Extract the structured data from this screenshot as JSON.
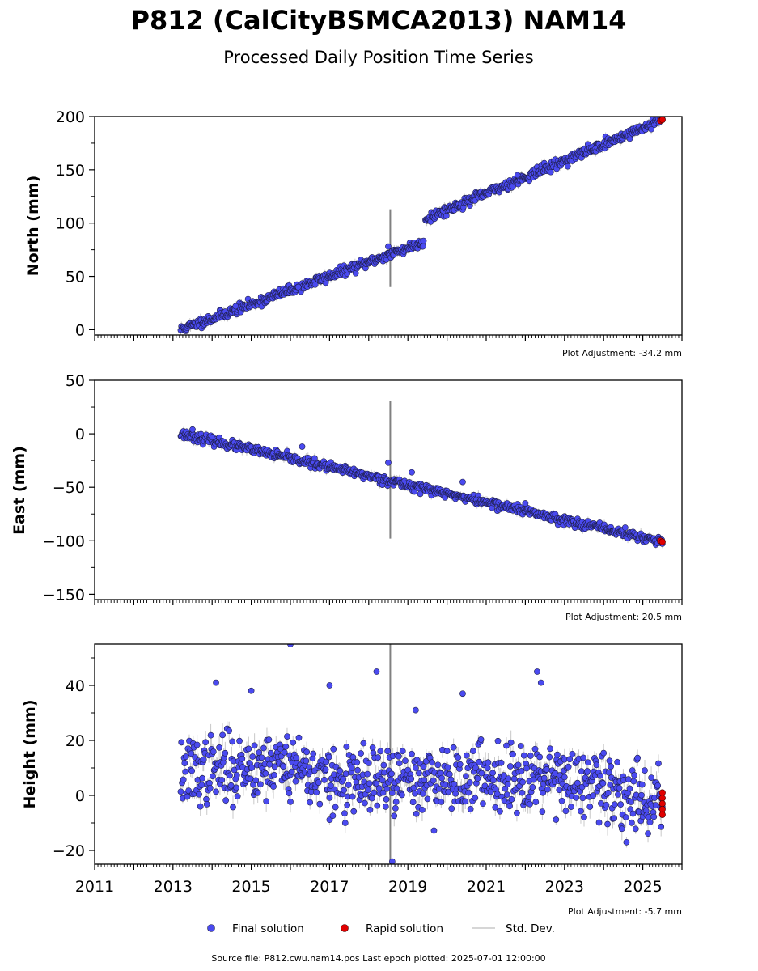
{
  "header": {
    "title": "P812 (CalCityBSMCA2013) NAM14",
    "subtitle": "Processed Daily Position Time Series"
  },
  "legend": {
    "final_label": "Final solution",
    "rapid_label": "Rapid solution",
    "std_label": "Std. Dev.",
    "final_color": "#4a4af0",
    "rapid_color": "#e00000",
    "std_color": "#c8c8c8"
  },
  "footer": {
    "source": "Source file: P812.cwu.nam14.pos  Last epoch plotted: 2025-07-01 12:00:00"
  },
  "chart_data": [
    {
      "type": "scatter",
      "ylabel": "North (mm)",
      "adjustment": "Plot Adjustment: -34.2 mm",
      "xlim": [
        2011,
        2026
      ],
      "ylim": [
        -5,
        200
      ],
      "yticks": [
        0,
        50,
        100,
        150,
        200
      ],
      "ytick_labels": [
        "0",
        "50",
        "100",
        "150",
        "200"
      ],
      "trend": [
        {
          "x": [
            2013.2,
            2019.4
          ],
          "y": [
            0,
            82
          ]
        },
        {
          "x": [
            2019.45,
            2025.5
          ],
          "y": [
            104,
            197
          ]
        }
      ],
      "outliers": [
        [
          2018.5,
          78
        ],
        [
          2016.2,
          40
        ],
        [
          2021.8,
          145
        ],
        [
          2014.6,
          22
        ]
      ],
      "spike": {
        "x": 2018.55,
        "y": [
          40,
          113
        ]
      },
      "rapid": [
        [
          2025.45,
          196
        ],
        [
          2025.5,
          197
        ]
      ]
    },
    {
      "type": "scatter",
      "ylabel": "East (mm)",
      "adjustment": "Plot Adjustment: 20.5 mm",
      "xlim": [
        2011,
        2026
      ],
      "ylim": [
        -155,
        50
      ],
      "yticks": [
        -150,
        -100,
        -50,
        0,
        50
      ],
      "ytick_labels": [
        "−150",
        "−100",
        "−50",
        "0",
        "50"
      ],
      "trend": [
        {
          "x": [
            2013.2,
            2025.5
          ],
          "y": [
            0,
            -101
          ]
        }
      ],
      "outliers": [
        [
          2013.5,
          4
        ],
        [
          2016.3,
          -12
        ],
        [
          2018.5,
          -27
        ],
        [
          2019.1,
          -36
        ],
        [
          2020.4,
          -45
        ],
        [
          2022.0,
          -65
        ]
      ],
      "spike": {
        "x": 2018.55,
        "y": [
          -98,
          31
        ]
      },
      "rapid": [
        [
          2025.45,
          -100
        ],
        [
          2025.5,
          -101
        ]
      ]
    },
    {
      "type": "scatter",
      "ylabel": "Height (mm)",
      "adjustment": "Plot Adjustment: -5.7 mm",
      "xlim": [
        2011,
        2026
      ],
      "ylim": [
        -25,
        55
      ],
      "yticks": [
        -20,
        0,
        20,
        40
      ],
      "ytick_labels": [
        "−20",
        "0",
        "20",
        "40"
      ],
      "xticks": [
        2011,
        2013,
        2015,
        2017,
        2019,
        2021,
        2023,
        2025
      ],
      "xtick_labels": [
        "2011",
        "2013",
        "2015",
        "2017",
        "2019",
        "2021",
        "2023",
        "2025"
      ],
      "trend": [
        {
          "x": [
            2013.2,
            2016.0
          ],
          "y": [
            8,
            12
          ]
        },
        {
          "x": [
            2016.0,
            2017.0
          ],
          "y": [
            12,
            5
          ]
        },
        {
          "x": [
            2017.0,
            2022.8
          ],
          "y": [
            4,
            8
          ]
        },
        {
          "x": [
            2022.8,
            2023.0
          ],
          "y": [
            8,
            10
          ]
        },
        {
          "x": [
            2023.0,
            2025.5
          ],
          "y": [
            5,
            -2
          ]
        }
      ],
      "outliers": [
        [
          2016.0,
          55
        ],
        [
          2018.2,
          45
        ],
        [
          2022.3,
          45
        ],
        [
          2014.1,
          41
        ],
        [
          2017.0,
          40
        ],
        [
          2020.4,
          37
        ],
        [
          2015.0,
          38
        ],
        [
          2022.4,
          41
        ],
        [
          2019.2,
          31
        ],
        [
          2018.6,
          -24
        ]
      ],
      "spike": {
        "x": 2018.55,
        "y": [
          -25,
          55
        ]
      },
      "rapid": [
        [
          2025.5,
          1
        ],
        [
          2025.5,
          -1
        ],
        [
          2025.5,
          -3
        ],
        [
          2025.5,
          -5
        ],
        [
          2025.5,
          -7
        ]
      ]
    }
  ]
}
